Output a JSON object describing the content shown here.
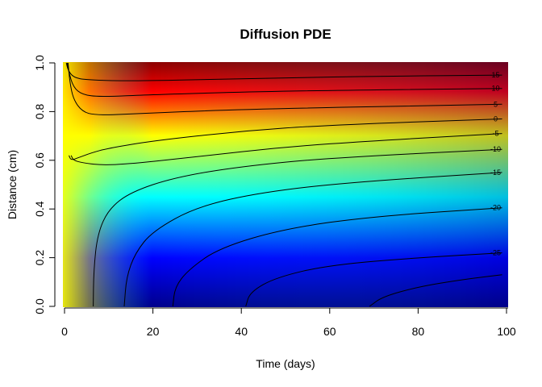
{
  "chart_data": {
    "type": "heatmap",
    "title": "Diffusion PDE",
    "xlabel": "Time (days)",
    "ylabel": "Distance (cm)",
    "xlim": [
      0,
      100
    ],
    "ylim": [
      0,
      1
    ],
    "x_ticks": [
      "0",
      "20",
      "40",
      "60",
      "80",
      "100"
    ],
    "y_ticks": [
      "0.0",
      "0.2",
      "0.4",
      "0.6",
      "0.8",
      "1.0"
    ],
    "color_scale": [
      "#00008b",
      "#0000ff",
      "#00ffff",
      "#ffff00",
      "#ff0000",
      "#8b0000"
    ],
    "contours": [
      {
        "label": "15",
        "points": [
          [
            0.4,
            1.0
          ],
          [
            0.8,
            0.97
          ],
          [
            2,
            0.94
          ],
          [
            5,
            0.93
          ],
          [
            15,
            0.925
          ],
          [
            40,
            0.935
          ],
          [
            70,
            0.945
          ],
          [
            99,
            0.95
          ]
        ]
      },
      {
        "label": "10",
        "points": [
          [
            0.6,
            1.0
          ],
          [
            1,
            0.96
          ],
          [
            2,
            0.9
          ],
          [
            4,
            0.87
          ],
          [
            8,
            0.86
          ],
          [
            20,
            0.87
          ],
          [
            50,
            0.885
          ],
          [
            99,
            0.895
          ]
        ]
      },
      {
        "label": "5",
        "points": [
          [
            0.8,
            1.0
          ],
          [
            1.2,
            0.92
          ],
          [
            2,
            0.85
          ],
          [
            4,
            0.8
          ],
          [
            7,
            0.785
          ],
          [
            15,
            0.79
          ],
          [
            40,
            0.81
          ],
          [
            99,
            0.83
          ]
        ]
      },
      {
        "label": "0",
        "points": [
          [
            1,
            0.62
          ],
          [
            1.5,
            0.6
          ],
          [
            3,
            0.61
          ],
          [
            6,
            0.63
          ],
          [
            10,
            0.65
          ],
          [
            20,
            0.68
          ],
          [
            40,
            0.72
          ],
          [
            60,
            0.745
          ],
          [
            99,
            0.77
          ]
        ]
      },
      {
        "label": "-5",
        "points": [
          [
            1.5,
            0.62
          ],
          [
            2,
            0.6
          ],
          [
            4,
            0.59
          ],
          [
            8,
            0.58
          ],
          [
            15,
            0.585
          ],
          [
            30,
            0.615
          ],
          [
            50,
            0.655
          ],
          [
            70,
            0.68
          ],
          [
            99,
            0.71
          ]
        ]
      },
      {
        "label": "-10",
        "points": [
          [
            6.5,
            0.0
          ],
          [
            6.6,
            0.15
          ],
          [
            7.5,
            0.3
          ],
          [
            10,
            0.4
          ],
          [
            15,
            0.47
          ],
          [
            25,
            0.53
          ],
          [
            40,
            0.575
          ],
          [
            60,
            0.61
          ],
          [
            99,
            0.645
          ]
        ]
      },
      {
        "label": "-15",
        "points": [
          [
            13.5,
            0.0
          ],
          [
            14,
            0.12
          ],
          [
            16,
            0.22
          ],
          [
            20,
            0.31
          ],
          [
            30,
            0.41
          ],
          [
            45,
            0.47
          ],
          [
            65,
            0.51
          ],
          [
            99,
            0.55
          ]
        ]
      },
      {
        "label": "-20",
        "points": [
          [
            24.5,
            0.0
          ],
          [
            25,
            0.08
          ],
          [
            28,
            0.15
          ],
          [
            35,
            0.24
          ],
          [
            50,
            0.32
          ],
          [
            70,
            0.37
          ],
          [
            99,
            0.405
          ]
        ]
      },
      {
        "label": "-25",
        "points": [
          [
            41,
            0.0
          ],
          [
            42,
            0.06
          ],
          [
            48,
            0.12
          ],
          [
            60,
            0.17
          ],
          [
            80,
            0.2
          ],
          [
            99,
            0.22
          ]
        ]
      },
      {
        "label": "",
        "points": [
          [
            69,
            0.0
          ],
          [
            72,
            0.04
          ],
          [
            80,
            0.08
          ],
          [
            90,
            0.11
          ],
          [
            99,
            0.13
          ]
        ]
      }
    ]
  }
}
